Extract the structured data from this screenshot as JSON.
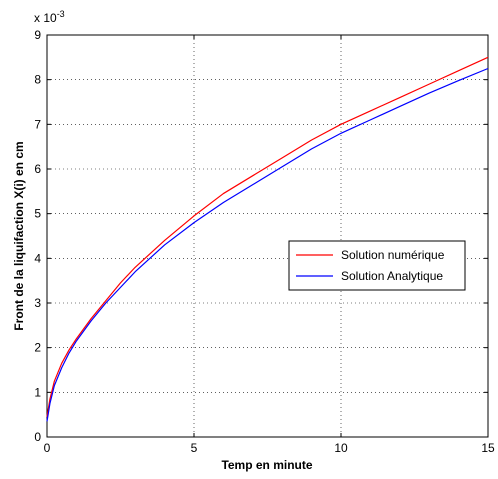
{
  "chart_data": {
    "type": "line",
    "title": "",
    "xlabel": "Temp en minute",
    "ylabel": "Front de la liquifaction X(i) en cm",
    "xlim": [
      0,
      15
    ],
    "ylim": [
      0,
      9
    ],
    "x_ticks": [
      0,
      5,
      10,
      15
    ],
    "y_ticks": [
      0,
      1,
      2,
      3,
      4,
      5,
      6,
      7,
      8,
      9
    ],
    "y_exponent_label": "x 10",
    "y_exponent_power": "-3",
    "grid": true,
    "legend_position": "center-right",
    "series": [
      {
        "name": "Solution numérique",
        "color": "#ff0000",
        "x": [
          0,
          0.1,
          0.25,
          0.5,
          0.75,
          1,
          1.5,
          2,
          2.5,
          3,
          4,
          5,
          6,
          7,
          8,
          9,
          10,
          11,
          12,
          13,
          14,
          15
        ],
        "y": [
          0.45,
          0.85,
          1.25,
          1.65,
          1.95,
          2.2,
          2.65,
          3.05,
          3.45,
          3.8,
          4.4,
          4.95,
          5.45,
          5.85,
          6.25,
          6.65,
          7.0,
          7.3,
          7.6,
          7.9,
          8.2,
          8.5
        ]
      },
      {
        "name": "Solution Analytique",
        "color": "#0000ff",
        "x": [
          0,
          0.1,
          0.25,
          0.5,
          0.75,
          1,
          1.5,
          2,
          2.5,
          3,
          4,
          5,
          6,
          7,
          8,
          9,
          10,
          11,
          12,
          13,
          14,
          15
        ],
        "y": [
          0.35,
          0.75,
          1.15,
          1.55,
          1.88,
          2.15,
          2.6,
          3.0,
          3.35,
          3.7,
          4.3,
          4.8,
          5.25,
          5.65,
          6.05,
          6.45,
          6.8,
          7.1,
          7.4,
          7.7,
          7.98,
          8.25
        ]
      }
    ]
  }
}
